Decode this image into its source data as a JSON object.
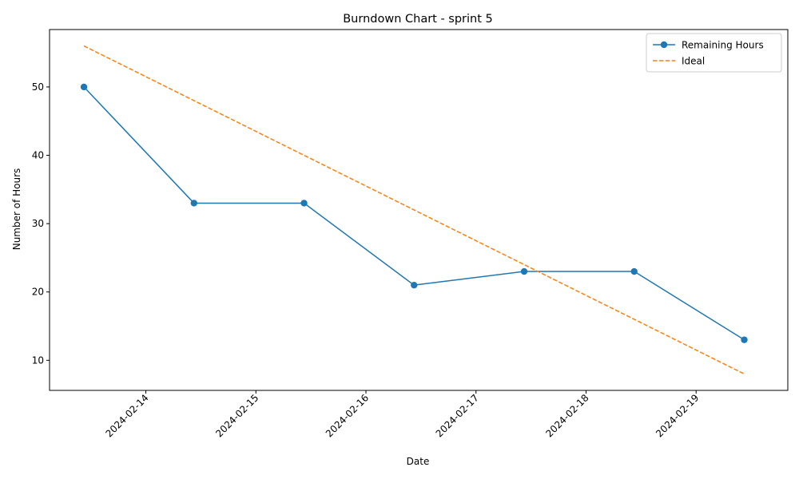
{
  "chart_data": {
    "type": "line",
    "title": "Burndown Chart - sprint 5",
    "xlabel": "Date",
    "ylabel": "Number of Hours",
    "x_axis_type": "date",
    "x_ticks": [
      "2024-02-14",
      "2024-02-15",
      "2024-02-16",
      "2024-02-17",
      "2024-02-18",
      "2024-02-19"
    ],
    "y_ticks": [
      10,
      20,
      30,
      40,
      50
    ],
    "ylim": [
      5.6,
      58.4
    ],
    "xlim": [
      "2024-02-13T03:00",
      "2024-02-19T20:00"
    ],
    "grid": false,
    "legend_position": "top-right",
    "series": [
      {
        "name": "Remaining Hours",
        "color": "#1f77b4",
        "style": "solid",
        "marker": "circle",
        "x": [
          "2024-02-13T10:30",
          "2024-02-14T10:30",
          "2024-02-15T10:30",
          "2024-02-16T10:30",
          "2024-02-17T10:30",
          "2024-02-18T10:30",
          "2024-02-19T10:30"
        ],
        "values": [
          50,
          33,
          33,
          21,
          23,
          23,
          13
        ]
      },
      {
        "name": "Ideal",
        "color": "#ff7f0e",
        "style": "dashed",
        "marker": "none",
        "x": [
          "2024-02-13T10:30",
          "2024-02-19T10:30"
        ],
        "values": [
          56,
          8
        ]
      }
    ]
  }
}
